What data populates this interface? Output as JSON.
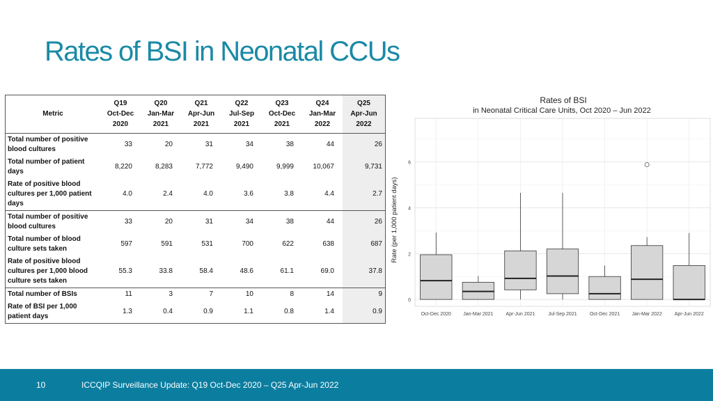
{
  "slide": {
    "title": "Rates of BSI in Neonatal CCUs",
    "footer_page": "10",
    "footer_text": "ICCQIP Surveillance Update: Q19 Oct-Dec 2020 – Q25 Apr-Jun 2022"
  },
  "table": {
    "metric_header": "Metric",
    "columns": [
      {
        "q": "Q19",
        "period": "Oct-Dec",
        "year": "2020"
      },
      {
        "q": "Q20",
        "period": "Jan-Mar",
        "year": "2021"
      },
      {
        "q": "Q21",
        "period": "Apr-Jun",
        "year": "2021"
      },
      {
        "q": "Q22",
        "period": "Jul-Sep",
        "year": "2021"
      },
      {
        "q": "Q23",
        "period": "Oct-Dec",
        "year": "2021"
      },
      {
        "q": "Q24",
        "period": "Jan-Mar",
        "year": "2022"
      },
      {
        "q": "Q25",
        "period": "Apr-Jun",
        "year": "2022"
      }
    ],
    "rows": [
      {
        "label": "Total number of positive blood cultures",
        "values": [
          "33",
          "20",
          "31",
          "34",
          "38",
          "44",
          "26"
        ]
      },
      {
        "label": "Total number of patient days",
        "values": [
          "8,220",
          "8,283",
          "7,772",
          "9,490",
          "9,999",
          "10,067",
          "9,731"
        ]
      },
      {
        "label": "Rate of positive blood cultures per 1,000 patient days",
        "values": [
          "4.0",
          "2.4",
          "4.0",
          "3.6",
          "3.8",
          "4.4",
          "2.7"
        ]
      },
      {
        "label": "Total number of positive blood cultures",
        "values": [
          "33",
          "20",
          "31",
          "34",
          "38",
          "44",
          "26"
        ]
      },
      {
        "label": "Total number of blood culture sets taken",
        "values": [
          "597",
          "591",
          "531",
          "700",
          "622",
          "638",
          "687"
        ]
      },
      {
        "label": "Rate of positive blood cultures per 1,000 blood culture sets taken",
        "values": [
          "55.3",
          "33.8",
          "58.4",
          "48.6",
          "61.1",
          "69.0",
          "37.8"
        ]
      },
      {
        "label": "Total number of BSIs",
        "values": [
          "11",
          "3",
          "7",
          "10",
          "8",
          "14",
          "9"
        ]
      },
      {
        "label": "Rate of BSI per 1,000 patient days",
        "values": [
          "1.3",
          "0.4",
          "0.9",
          "1.1",
          "0.8",
          "1.4",
          "0.9"
        ]
      }
    ],
    "separator_before_rows": [
      3,
      6
    ]
  },
  "chart_data": {
    "type": "box",
    "title": "Rates of BSI",
    "subtitle": "in Neonatal Critical Care Units, Oct 2020 – Jun 2022",
    "xlabel": "",
    "ylabel": "Rate (per 1,000 patient days)",
    "ylim": [
      -0.3,
      7.9
    ],
    "yticks": [
      0,
      2,
      4,
      6
    ],
    "categories": [
      "Oct-Dec 2020",
      "Jan-Mar 2021",
      "Apr-Jun 2021",
      "Jul-Sep 2021",
      "Oct-Dec 2021",
      "Jan-Mar 2022",
      "Apr-Jun 2022"
    ],
    "boxes": [
      {
        "min": 0.0,
        "q1": 0.0,
        "median": 0.82,
        "q3": 1.95,
        "max": 2.92,
        "outliers": []
      },
      {
        "min": 0.0,
        "q1": 0.0,
        "median": 0.35,
        "q3": 0.75,
        "max": 1.02,
        "outliers": []
      },
      {
        "min": 0.0,
        "q1": 0.42,
        "median": 0.92,
        "q3": 2.12,
        "max": 4.65,
        "outliers": []
      },
      {
        "min": 0.0,
        "q1": 0.25,
        "median": 1.02,
        "q3": 2.2,
        "max": 4.65,
        "outliers": []
      },
      {
        "min": 0.0,
        "q1": 0.0,
        "median": 0.25,
        "q3": 1.0,
        "max": 1.48,
        "outliers": []
      },
      {
        "min": 0.0,
        "q1": 0.0,
        "median": 0.88,
        "q3": 2.35,
        "max": 2.72,
        "outliers": [
          5.88
        ]
      },
      {
        "min": 0.0,
        "q1": 0.0,
        "median": 0.0,
        "q3": 1.48,
        "max": 2.9,
        "outliers": []
      }
    ],
    "grid": true,
    "box_fill": "#d6d6d6",
    "legend": "none"
  }
}
